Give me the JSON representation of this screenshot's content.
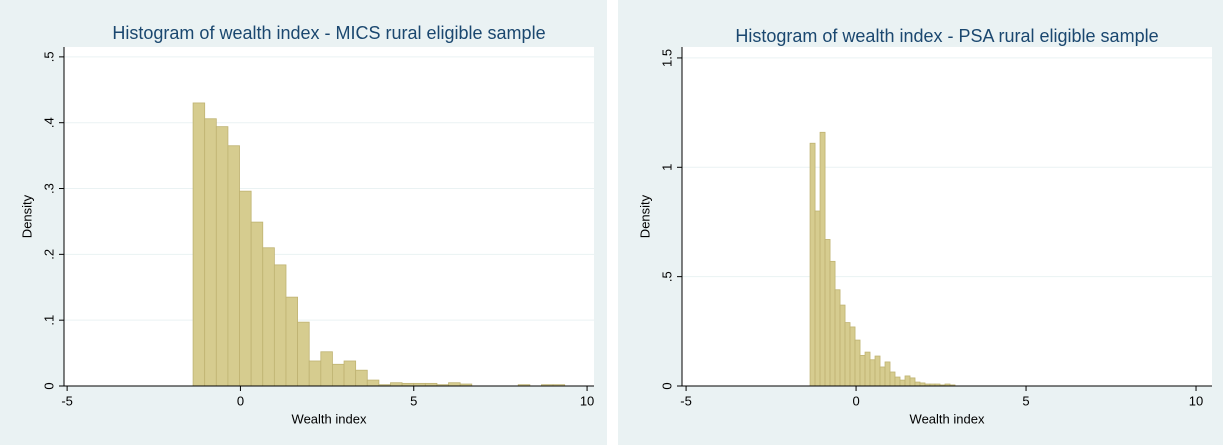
{
  "chart_data": [
    {
      "type": "histogram",
      "title": "Histogram of wealth index - MICS rural eligible sample",
      "xlabel": "Wealth index",
      "ylabel": "Density",
      "bins": [
        -1.366,
        -1.031,
        -0.696,
        -0.361,
        -0.026,
        0.309,
        0.644,
        0.979,
        1.314,
        1.649,
        1.984,
        2.319,
        2.654,
        2.989,
        3.324,
        3.659,
        3.994,
        4.329,
        4.664,
        4.999,
        5.334,
        5.669,
        6.004,
        6.339,
        6.674,
        7.009,
        7.344,
        7.679,
        8.014,
        8.349,
        8.684,
        9.019,
        9.354
      ],
      "values": [
        0.43,
        0.406,
        0.394,
        0.365,
        0.296,
        0.249,
        0.21,
        0.184,
        0.135,
        0.097,
        0.038,
        0.052,
        0.033,
        0.038,
        0.024,
        0.009,
        0.002,
        0.005,
        0.004,
        0.004,
        0.004,
        0.002,
        0.005,
        0.003,
        0,
        0,
        0,
        0,
        0.002,
        0,
        0.002,
        0.002
      ],
      "color": "#d6cc8f",
      "xlim": [
        -5.09,
        10.2
      ],
      "ylim": [
        0,
        0.515
      ],
      "xticks": [
        -5,
        0,
        5,
        10
      ],
      "yticks": [
        0,
        {
          "value": 0.1,
          "label": ".1"
        },
        {
          "value": 0.2,
          "label": ".2"
        },
        {
          "value": 0.3,
          "label": ".3"
        },
        {
          "value": 0.4,
          "label": ".4"
        },
        {
          "value": 0.5,
          "label": ".5"
        }
      ],
      "grid": true
    },
    {
      "type": "histogram",
      "title": "Histogram of wealth index - PSA rural eligible sample",
      "xlabel": "Wealth index",
      "ylabel": "Density",
      "bins": [
        -1.353,
        -1.206,
        -1.059,
        -0.912,
        -0.765,
        -0.618,
        -0.471,
        -0.324,
        -0.177,
        -0.03,
        0.117,
        0.264,
        0.411,
        0.558,
        0.705,
        0.852,
        0.999,
        1.146,
        1.293,
        1.44,
        1.587,
        1.734,
        1.881,
        2.028,
        2.175,
        2.322,
        2.469,
        2.616,
        2.763,
        2.91
      ],
      "values": [
        1.11,
        0.8,
        1.16,
        0.67,
        0.57,
        0.44,
        0.37,
        0.29,
        0.27,
        0.21,
        0.14,
        0.155,
        0.12,
        0.137,
        0.087,
        0.11,
        0.064,
        0.041,
        0.027,
        0.046,
        0.037,
        0.018,
        0.014,
        0.009,
        0.009,
        0.009,
        0.005,
        0.009,
        0.005
      ],
      "color": "#d6cc8f",
      "xlim": [
        -5.12,
        10.47
      ],
      "ylim": [
        0,
        1.55
      ],
      "xticks": [
        -5,
        0,
        5,
        10
      ],
      "yticks": [
        0,
        {
          "value": 0.5,
          "label": ".5"
        },
        1,
        1.5
      ],
      "grid": true
    }
  ]
}
